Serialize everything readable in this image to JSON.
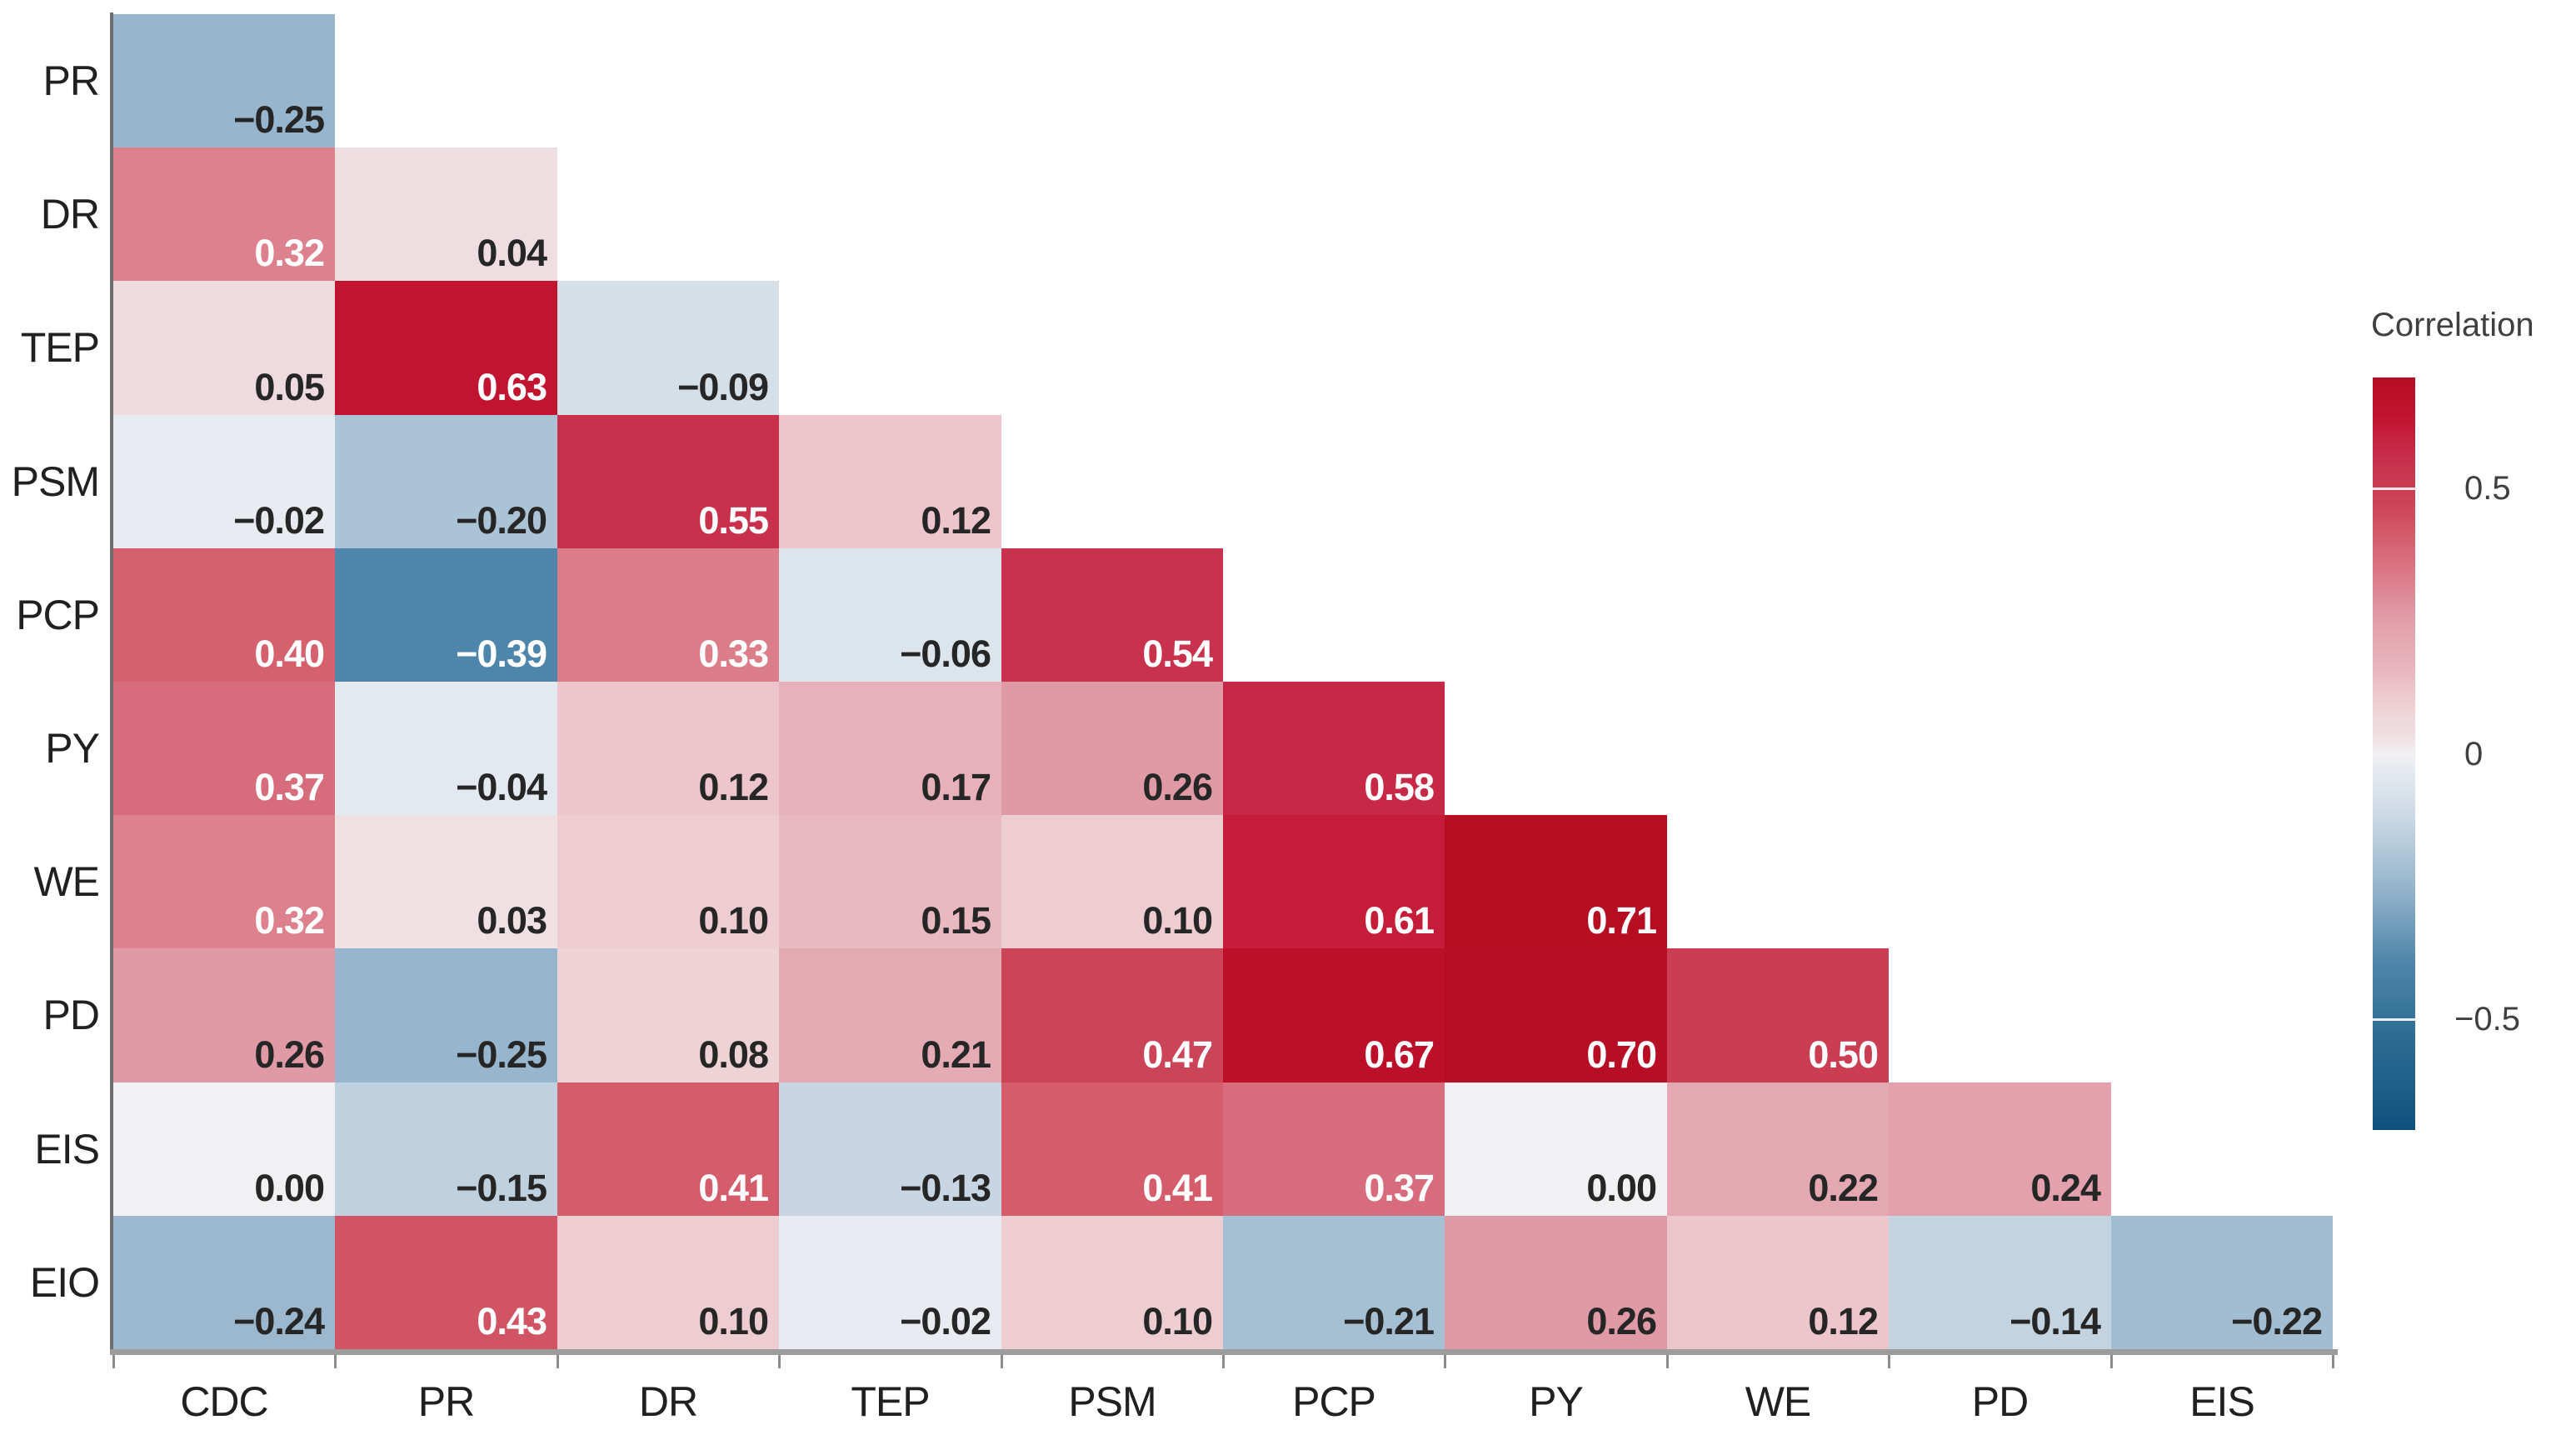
{
  "chart_data": {
    "type": "heatmap",
    "subtype": "lower-triangular correlation matrix",
    "row_labels": [
      "PR",
      "DR",
      "TEP",
      "PSM",
      "PCP",
      "PY",
      "WE",
      "PD",
      "EIS",
      "EIO"
    ],
    "col_labels": [
      "CDC",
      "PR",
      "DR",
      "TEP",
      "PSM",
      "PCP",
      "PY",
      "WE",
      "PD",
      "EIS"
    ],
    "values": [
      [
        -0.25
      ],
      [
        0.32,
        0.04
      ],
      [
        0.05,
        0.63,
        -0.09
      ],
      [
        -0.02,
        -0.2,
        0.55,
        0.12
      ],
      [
        0.4,
        -0.39,
        0.33,
        -0.06,
        0.54
      ],
      [
        0.37,
        -0.04,
        0.12,
        0.17,
        0.26,
        0.58
      ],
      [
        0.32,
        0.03,
        0.1,
        0.15,
        0.1,
        0.61,
        0.71
      ],
      [
        0.26,
        -0.25,
        0.08,
        0.21,
        0.47,
        0.67,
        0.7,
        0.5
      ],
      [
        0.0,
        -0.15,
        0.41,
        -0.13,
        0.41,
        0.37,
        0.0,
        0.22,
        0.24
      ],
      [
        -0.24,
        0.43,
        0.1,
        -0.02,
        0.1,
        -0.21,
        0.26,
        0.12,
        -0.14,
        -0.22
      ]
    ],
    "legend": {
      "title": "Correlation",
      "ticks": [
        {
          "label": "0.5",
          "value": 0.5
        },
        {
          "label": "0",
          "value": 0
        },
        {
          "label": "−0.5",
          "value": -0.5
        }
      ],
      "domain": [
        -0.709,
        0.709
      ]
    },
    "color_scale": {
      "stops": [
        [
          -0.709,
          "#0f517d"
        ],
        [
          -0.5,
          "#357197"
        ],
        [
          -0.39,
          "#4e86ab"
        ],
        [
          -0.25,
          "#97b5cc"
        ],
        [
          -0.2,
          "#aac3d5"
        ],
        [
          -0.13,
          "#c7d6e2"
        ],
        [
          -0.06,
          "#dde5ec"
        ],
        [
          -0.02,
          "#e8ecf0"
        ],
        [
          0.0,
          "#f1f1f3"
        ],
        [
          0.03,
          "#efe0e3"
        ],
        [
          0.05,
          "#eedbdf"
        ],
        [
          0.08,
          "#eed3d6"
        ],
        [
          0.12,
          "#ecc6cc"
        ],
        [
          0.17,
          "#e7b1bb"
        ],
        [
          0.21,
          "#e5abb5"
        ],
        [
          0.26,
          "#e09aa6"
        ],
        [
          0.33,
          "#dc7d8a"
        ],
        [
          0.37,
          "#d76d7c"
        ],
        [
          0.4,
          "#d5606e"
        ],
        [
          0.47,
          "#cc4458"
        ],
        [
          0.5,
          "#ca3d53"
        ],
        [
          0.58,
          "#c62846"
        ],
        [
          0.63,
          "#c21431"
        ],
        [
          0.71,
          "#b60d23"
        ]
      ],
      "value_text_dark": "#262626",
      "value_text_light": "#ffffff",
      "white_text_threshold": 0.3
    }
  }
}
